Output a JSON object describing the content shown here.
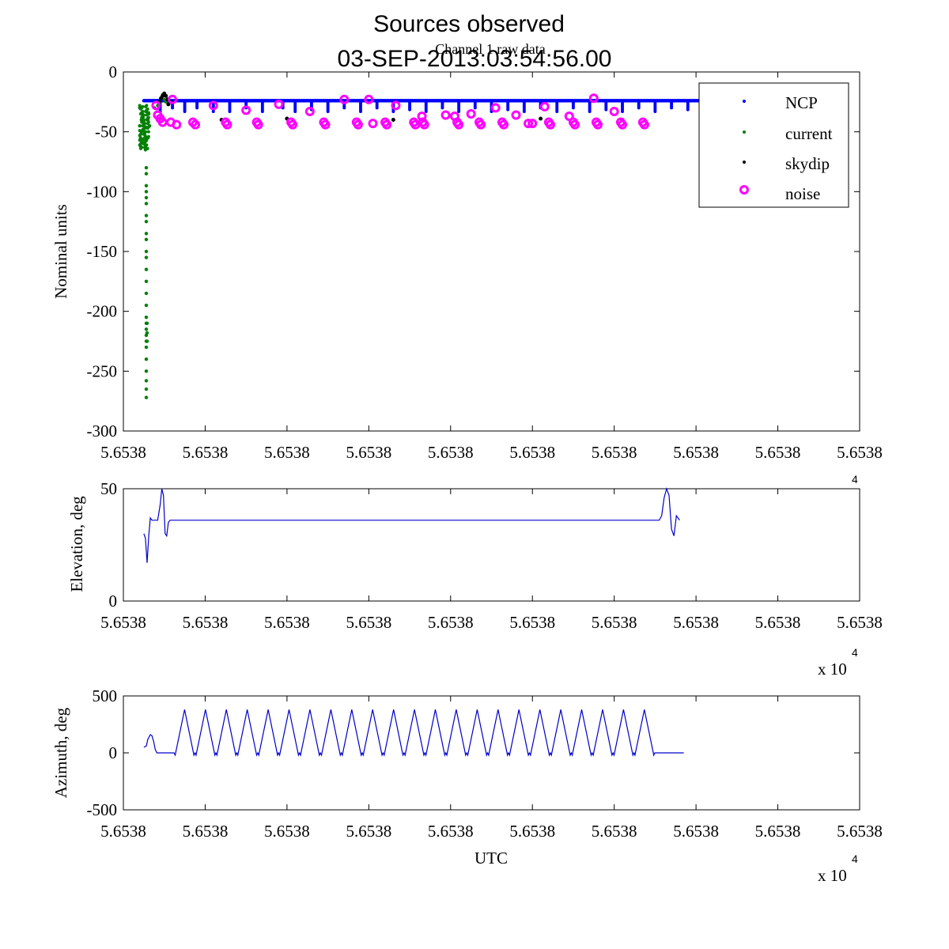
{
  "figure": {
    "title_line1": "Sources observed",
    "title_line2": "03-SEP-2013:03:54:56.00",
    "exponent_base": "x 10",
    "exponent_power": "4"
  },
  "colors": {
    "NCP": "#0000ff",
    "current": "#008000",
    "skydip": "#000000",
    "noise": "#ff00ff",
    "trace": "#0000cc"
  },
  "chart_data": [
    {
      "type": "scatter",
      "title": "Channel 1 raw data",
      "xlabel": "",
      "ylabel": "Nominal units",
      "xlim": [
        0,
        9
      ],
      "ylim": [
        -300,
        0
      ],
      "yticks": [
        0,
        -50,
        -100,
        -150,
        -200,
        -250,
        -300
      ],
      "xtick_labels": [
        "5.6538",
        "5.6538",
        "5.6538",
        "5.6538",
        "5.6538",
        "5.6538",
        "5.6538",
        "5.6538",
        "5.6538",
        "5.6538"
      ],
      "legend": {
        "placement": "top-right",
        "entries": [
          "NCP",
          "current",
          "skydip",
          "noise"
        ]
      },
      "series": [
        {
          "name": "NCP",
          "marker": "dot",
          "x_range": [
            0.25,
            7.1
          ],
          "y_level": -24,
          "y_dips": [
            [
              0.45,
              -33
            ],
            [
              0.6,
              -30
            ],
            [
              0.75,
              -34
            ],
            [
              0.9,
              -31
            ],
            [
              1.1,
              -33
            ],
            [
              1.3,
              -34
            ],
            [
              1.5,
              -30
            ],
            [
              1.7,
              -33
            ],
            [
              1.95,
              -31
            ],
            [
              2.1,
              -34
            ],
            [
              2.3,
              -32
            ],
            [
              2.5,
              -33
            ],
            [
              2.7,
              -30
            ],
            [
              2.9,
              -34
            ],
            [
              3.1,
              -31
            ],
            [
              3.3,
              -33
            ],
            [
              3.5,
              -32
            ],
            [
              3.7,
              -34
            ],
            [
              3.9,
              -30
            ],
            [
              4.1,
              -33
            ],
            [
              4.3,
              -31
            ],
            [
              4.5,
              -34
            ],
            [
              4.7,
              -32
            ],
            [
              4.9,
              -33
            ],
            [
              5.1,
              -30
            ],
            [
              5.3,
              -34
            ],
            [
              5.5,
              -31
            ],
            [
              5.7,
              -33
            ],
            [
              5.9,
              -32
            ],
            [
              6.1,
              -34
            ],
            [
              6.3,
              -31
            ],
            [
              6.5,
              -33
            ],
            [
              6.7,
              -30
            ],
            [
              6.9,
              -32
            ]
          ]
        },
        {
          "name": "current",
          "marker": "dot",
          "points": [
            [
              0.2,
              -30
            ],
            [
              0.2,
              -45
            ],
            [
              0.21,
              -55
            ],
            [
              0.21,
              -62
            ],
            [
              0.22,
              -40
            ],
            [
              0.22,
              -50
            ],
            [
              0.23,
              -35
            ],
            [
              0.23,
              -58
            ],
            [
              0.24,
              -48
            ],
            [
              0.24,
              -38
            ],
            [
              0.25,
              -60
            ],
            [
              0.25,
              -42
            ],
            [
              0.26,
              -52
            ],
            [
              0.27,
              -46
            ],
            [
              0.27,
              -65
            ],
            [
              0.28,
              -55
            ],
            [
              0.28,
              -80
            ],
            [
              0.28,
              -85
            ],
            [
              0.28,
              -95
            ],
            [
              0.28,
              -100
            ],
            [
              0.28,
              -105
            ],
            [
              0.28,
              -110
            ],
            [
              0.28,
              -120
            ],
            [
              0.28,
              -125
            ],
            [
              0.28,
              -135
            ],
            [
              0.28,
              -140
            ],
            [
              0.28,
              -150
            ],
            [
              0.28,
              -155
            ],
            [
              0.28,
              -165
            ],
            [
              0.28,
              -175
            ],
            [
              0.28,
              -185
            ],
            [
              0.28,
              -195
            ],
            [
              0.28,
              -205
            ],
            [
              0.28,
              -210
            ],
            [
              0.28,
              -215
            ],
            [
              0.28,
              -220
            ],
            [
              0.28,
              -225
            ],
            [
              0.28,
              -230
            ],
            [
              0.28,
              -240
            ],
            [
              0.28,
              -250
            ],
            [
              0.28,
              -258
            ],
            [
              0.28,
              -265
            ],
            [
              0.28,
              -272
            ],
            [
              0.29,
              -210
            ],
            [
              0.29,
              -225
            ],
            [
              0.29,
              -218
            ],
            [
              0.3,
              -40
            ],
            [
              0.3,
              -55
            ],
            [
              0.31,
              -35
            ],
            [
              0.32,
              -45
            ],
            [
              0.38,
              -30
            ],
            [
              0.42,
              -28
            ],
            [
              0.45,
              -26
            ],
            [
              0.47,
              -21
            ],
            [
              0.48,
              -19
            ],
            [
              0.5,
              -23
            ],
            [
              0.52,
              -25
            ]
          ]
        },
        {
          "name": "skydip",
          "marker": "dot",
          "points": [
            [
              0.44,
              -25
            ],
            [
              0.46,
              -22
            ],
            [
              0.48,
              -20
            ],
            [
              0.5,
              -18
            ],
            [
              0.52,
              -20
            ],
            [
              0.54,
              -23
            ],
            [
              0.55,
              -27
            ],
            [
              0.58,
              -25
            ],
            [
              1.2,
              -40
            ],
            [
              2.0,
              -39
            ],
            [
              3.3,
              -40
            ],
            [
              5.1,
              -39
            ],
            [
              6.1,
              -40
            ]
          ]
        },
        {
          "name": "noise",
          "marker": "circle",
          "points": [
            [
              0.4,
              -28
            ],
            [
              0.42,
              -36
            ],
            [
              0.45,
              -39
            ],
            [
              0.48,
              -42
            ],
            [
              0.6,
              -23
            ],
            [
              0.58,
              -42
            ],
            [
              0.65,
              -44
            ],
            [
              0.85,
              -42
            ],
            [
              0.88,
              -44
            ],
            [
              1.1,
              -28
            ],
            [
              1.25,
              -42
            ],
            [
              1.27,
              -44
            ],
            [
              1.5,
              -32
            ],
            [
              1.63,
              -42
            ],
            [
              1.65,
              -44
            ],
            [
              1.9,
              -27
            ],
            [
              2.05,
              -42
            ],
            [
              2.07,
              -44
            ],
            [
              2.28,
              -33
            ],
            [
              2.45,
              -42
            ],
            [
              2.47,
              -44
            ],
            [
              2.7,
              -23
            ],
            [
              2.85,
              -42
            ],
            [
              2.87,
              -44
            ],
            [
              3.0,
              -23
            ],
            [
              3.05,
              -43
            ],
            [
              3.2,
              -42
            ],
            [
              3.22,
              -44
            ],
            [
              3.33,
              -28
            ],
            [
              3.55,
              -42
            ],
            [
              3.57,
              -44
            ],
            [
              3.65,
              -37
            ],
            [
              3.66,
              -42
            ],
            [
              3.68,
              -44
            ],
            [
              3.94,
              -36
            ],
            [
              4.05,
              -37
            ],
            [
              4.08,
              -42
            ],
            [
              4.1,
              -44
            ],
            [
              4.25,
              -35
            ],
            [
              4.35,
              -42
            ],
            [
              4.37,
              -44
            ],
            [
              4.55,
              -30
            ],
            [
              4.63,
              -42
            ],
            [
              4.65,
              -44
            ],
            [
              4.8,
              -36
            ],
            [
              4.95,
              -43
            ],
            [
              5.0,
              -43
            ],
            [
              5.15,
              -29
            ],
            [
              5.2,
              -42
            ],
            [
              5.22,
              -44
            ],
            [
              5.45,
              -37
            ],
            [
              5.5,
              -42
            ],
            [
              5.52,
              -44
            ],
            [
              5.75,
              -22
            ],
            [
              5.78,
              -42
            ],
            [
              5.8,
              -44
            ],
            [
              6.0,
              -33
            ],
            [
              6.08,
              -42
            ],
            [
              6.1,
              -44
            ],
            [
              6.35,
              -42
            ],
            [
              6.37,
              -44
            ]
          ]
        }
      ]
    },
    {
      "type": "line",
      "title": "",
      "xlabel": "",
      "ylabel": "Elevation, deg",
      "xlim": [
        0,
        9
      ],
      "ylim": [
        0,
        50
      ],
      "yticks": [
        50,
        0
      ],
      "xtick_labels": [
        "5.6538",
        "5.6538",
        "5.6538",
        "5.6538",
        "5.6538",
        "5.6538",
        "5.6538",
        "5.6538",
        "5.6538",
        "5.6538"
      ],
      "series": [
        {
          "x": [
            0.25,
            0.27,
            0.29,
            0.31,
            0.33,
            0.35,
            0.37,
            0.39,
            0.42,
            0.45,
            0.47,
            0.49,
            0.51,
            0.53,
            0.55,
            0.57,
            0.6,
            0.65,
            6.5,
            6.55,
            6.58,
            6.61,
            6.64,
            6.67,
            6.7,
            6.73,
            6.76,
            6.8
          ],
          "y": [
            30,
            28,
            17,
            29,
            37,
            36,
            36,
            36,
            36,
            43,
            50,
            47,
            30,
            29,
            35,
            36,
            36,
            36,
            36,
            36,
            38,
            46,
            50,
            47,
            32,
            29,
            38,
            36
          ]
        }
      ]
    },
    {
      "type": "line",
      "title": "",
      "xlabel": "UTC",
      "ylabel": "Azimuth, deg",
      "xlim": [
        0,
        9
      ],
      "ylim": [
        -500,
        500
      ],
      "yticks": [
        500,
        0,
        -500
      ],
      "xtick_labels": [
        "5.6538",
        "5.6538",
        "5.6538",
        "5.6538",
        "5.6538",
        "5.6538",
        "5.6538",
        "5.6538",
        "5.6538",
        "5.6538"
      ],
      "series": [
        {
          "start": 0.25,
          "lead": [
            [
              0.25,
              50
            ],
            [
              0.28,
              60
            ],
            [
              0.3,
              120
            ],
            [
              0.33,
              160
            ],
            [
              0.35,
              150
            ],
            [
              0.37,
              100
            ],
            [
              0.39,
              30
            ],
            [
              0.41,
              0
            ],
            [
              0.62,
              0
            ]
          ],
          "cycle_start": 0.62,
          "cycle_period": 0.2555,
          "cycle_count": 23,
          "cycle_peak": 380,
          "cycle_trough": -20,
          "tail": [
            [
              6.5,
              0
            ],
            [
              6.85,
              0
            ]
          ]
        }
      ]
    }
  ]
}
